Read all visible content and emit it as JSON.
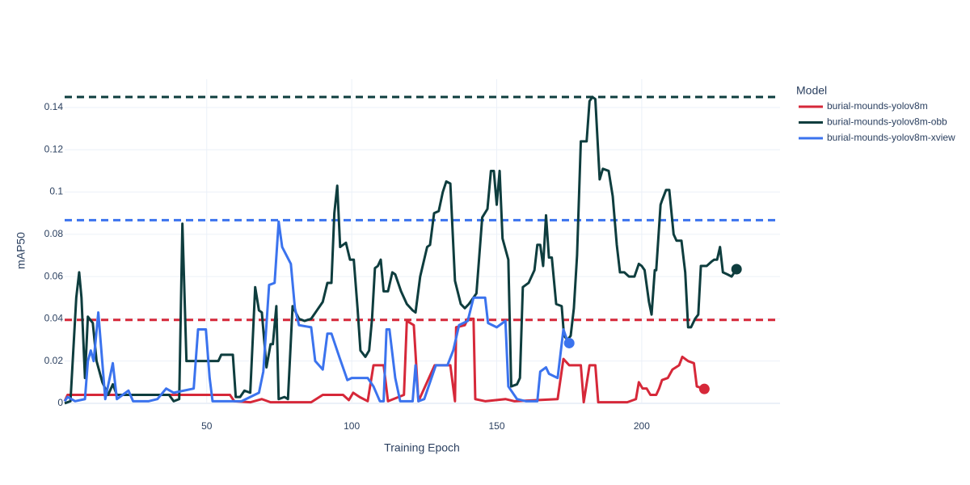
{
  "chart_data": {
    "type": "line",
    "x_label": "Training Epoch",
    "y_label": "mAP50",
    "legend_title": "Model",
    "xlim": [
      1,
      247.7
    ],
    "ylim": [
      -0.0004,
      0.1534
    ],
    "xticks": [
      50,
      100,
      150,
      200
    ],
    "yticks": [
      0,
      0.02,
      0.04,
      0.06,
      0.08,
      0.1,
      0.12,
      0.14
    ],
    "grid": true,
    "legend": "right",
    "series": [
      {
        "name": "burial-mounds-yolov8m",
        "color": "#d62839",
        "x": [
          1,
          2,
          58,
          59.5,
          65,
          69,
          72,
          86,
          90,
          97,
          99,
          100.5,
          102.7,
          105.5,
          107.5,
          111,
          112.5,
          118,
          119,
          121.4,
          123,
          128.6,
          134,
          135.6,
          136,
          139,
          140,
          142,
          142.6,
          146,
          153,
          156,
          171,
          173,
          175,
          179,
          180,
          182,
          184,
          185,
          195,
          198,
          199,
          200.3,
          201.7,
          203,
          205,
          206,
          207,
          209,
          210.6,
          212.9,
          214,
          216,
          218,
          219,
          221.6
        ],
        "values": [
          0.001,
          0.004,
          0.004,
          0.001,
          0.0005,
          0.002,
          0.0005,
          0.0005,
          0.004,
          0.004,
          0.0015,
          0.005,
          0.003,
          0.001,
          0.018,
          0.018,
          0.001,
          0.004,
          0.039,
          0.037,
          0.001,
          0.018,
          0.018,
          0.001,
          0.036,
          0.037,
          0.04,
          0.04,
          0.002,
          0.001,
          0.002,
          0.001,
          0.002,
          0.021,
          0.018,
          0.018,
          0.0005,
          0.018,
          0.018,
          0.0005,
          0.0005,
          0.002,
          0.01,
          0.007,
          0.007,
          0.004,
          0.004,
          0.007,
          0.011,
          0.012,
          0.016,
          0.018,
          0.022,
          0.02,
          0.019,
          0.008,
          0.0068
        ]
      },
      {
        "name": "burial-mounds-yolov8m-obb",
        "color": "#0e3d3e",
        "x": [
          1,
          3,
          5,
          6,
          6.8,
          8,
          9,
          10.7,
          12,
          14,
          16,
          17.6,
          19,
          37,
          38.6,
          40.5,
          41.6,
          43,
          54,
          55,
          59,
          60,
          61.5,
          63,
          65,
          66.7,
          68,
          69,
          70.6,
          72,
          72.8,
          74,
          74.8,
          76.8,
          78,
          79.6,
          81.8,
          83.7,
          86,
          88,
          90,
          91.6,
          93,
          94,
          95,
          96,
          98,
          99.4,
          100.7,
          102,
          103,
          104.7,
          106,
          107,
          108,
          109,
          110,
          111,
          112.5,
          114,
          115,
          117,
          119,
          121,
          122,
          123.6,
          126,
          127,
          128.4,
          130,
          131.4,
          132.6,
          134,
          135.6,
          137.6,
          139,
          140.4,
          143,
          145,
          146.8,
          148,
          149,
          150,
          151,
          152,
          154,
          155,
          157,
          158,
          159,
          161,
          163,
          164,
          165,
          166,
          167,
          168,
          169,
          170.5,
          172.4,
          173.2,
          174.4,
          175.5,
          176.6,
          177.7,
          179,
          181,
          182,
          183,
          184,
          185.5,
          186.6,
          188.6,
          190,
          191.4,
          192.5,
          194,
          195.6,
          197.5,
          199,
          200,
          201,
          202.5,
          203.4,
          204.5,
          205,
          206.5,
          207,
          208.4,
          209.5,
          211,
          212,
          213.7,
          215,
          216,
          217,
          218.4,
          219.5,
          220.4,
          222.4,
          224,
          225,
          226,
          227,
          228,
          229.6,
          231,
          232.7
        ],
        "values": [
          0.0,
          0.001,
          0.05,
          0.062,
          0.05,
          0.012,
          0.041,
          0.038,
          0.02,
          0.01,
          0.004,
          0.009,
          0.004,
          0.004,
          0.001,
          0.002,
          0.085,
          0.02,
          0.02,
          0.023,
          0.023,
          0.003,
          0.003,
          0.006,
          0.005,
          0.055,
          0.044,
          0.043,
          0.017,
          0.028,
          0.028,
          0.046,
          0.002,
          0.003,
          0.002,
          0.046,
          0.04,
          0.039,
          0.04,
          0.044,
          0.048,
          0.057,
          0.057,
          0.09,
          0.103,
          0.074,
          0.076,
          0.068,
          0.068,
          0.045,
          0.025,
          0.022,
          0.025,
          0.04,
          0.064,
          0.065,
          0.068,
          0.053,
          0.053,
          0.062,
          0.061,
          0.053,
          0.047,
          0.044,
          0.043,
          0.06,
          0.074,
          0.075,
          0.09,
          0.091,
          0.1,
          0.105,
          0.104,
          0.058,
          0.047,
          0.045,
          0.047,
          0.052,
          0.088,
          0.092,
          0.11,
          0.11,
          0.094,
          0.11,
          0.078,
          0.068,
          0.008,
          0.009,
          0.012,
          0.055,
          0.057,
          0.063,
          0.075,
          0.075,
          0.065,
          0.089,
          0.069,
          0.069,
          0.047,
          0.046,
          0.032,
          0.03,
          0.032,
          0.045,
          0.07,
          0.124,
          0.124,
          0.143,
          0.145,
          0.144,
          0.106,
          0.111,
          0.11,
          0.098,
          0.075,
          0.062,
          0.062,
          0.06,
          0.06,
          0.066,
          0.065,
          0.063,
          0.048,
          0.042,
          0.063,
          0.063,
          0.094,
          0.096,
          0.101,
          0.101,
          0.08,
          0.077,
          0.077,
          0.062,
          0.036,
          0.036,
          0.04,
          0.042,
          0.065,
          0.065,
          0.067,
          0.068,
          0.068,
          0.074,
          0.062,
          0.061,
          0.06,
          0.0635
        ]
      },
      {
        "name": "burial-mounds-yolov8m-xview",
        "color": "#3b73ee",
        "x": [
          1,
          2,
          4.6,
          8,
          9,
          10,
          11,
          12.6,
          15,
          17.6,
          19,
          23,
          24.6,
          27,
          30,
          33,
          36,
          38.6,
          45.5,
          47,
          49.7,
          51,
          52,
          62,
          65,
          68,
          69.5,
          71.5,
          73.4,
          74.8,
          76,
          79,
          80.4,
          81.8,
          86,
          87.4,
          90,
          91.6,
          93,
          95.7,
          98.5,
          100,
          105.5,
          107.5,
          109.7,
          111,
          112,
          113,
          115,
          116.7,
          121,
          122,
          123,
          125,
          129,
          133,
          135,
          137,
          140,
          142,
          146,
          147,
          150,
          153,
          154,
          157,
          160,
          164,
          165,
          167,
          168,
          171,
          173,
          174,
          175
        ],
        "values": [
          0.001,
          0.003,
          0.001,
          0.002,
          0.02,
          0.025,
          0.02,
          0.043,
          0.002,
          0.019,
          0.002,
          0.006,
          0.001,
          0.001,
          0.001,
          0.002,
          0.007,
          0.005,
          0.007,
          0.035,
          0.035,
          0.012,
          0.001,
          0.001,
          0.003,
          0.005,
          0.015,
          0.056,
          0.057,
          0.086,
          0.074,
          0.066,
          0.045,
          0.037,
          0.036,
          0.02,
          0.016,
          0.033,
          0.033,
          0.022,
          0.011,
          0.012,
          0.012,
          0.008,
          0.001,
          0.001,
          0.035,
          0.035,
          0.012,
          0.001,
          0.001,
          0.018,
          0.001,
          0.002,
          0.018,
          0.018,
          0.025,
          0.037,
          0.039,
          0.05,
          0.05,
          0.038,
          0.036,
          0.039,
          0.008,
          0.002,
          0.001,
          0.001,
          0.015,
          0.017,
          0.014,
          0.012,
          0.035,
          0.031,
          0.0285
        ]
      }
    ],
    "reference_lines": [
      {
        "y": 0.0395,
        "color": "#d62839"
      },
      {
        "y": 0.145,
        "color": "#0e3d3e"
      },
      {
        "y": 0.0867,
        "color": "#3b73ee"
      }
    ]
  }
}
